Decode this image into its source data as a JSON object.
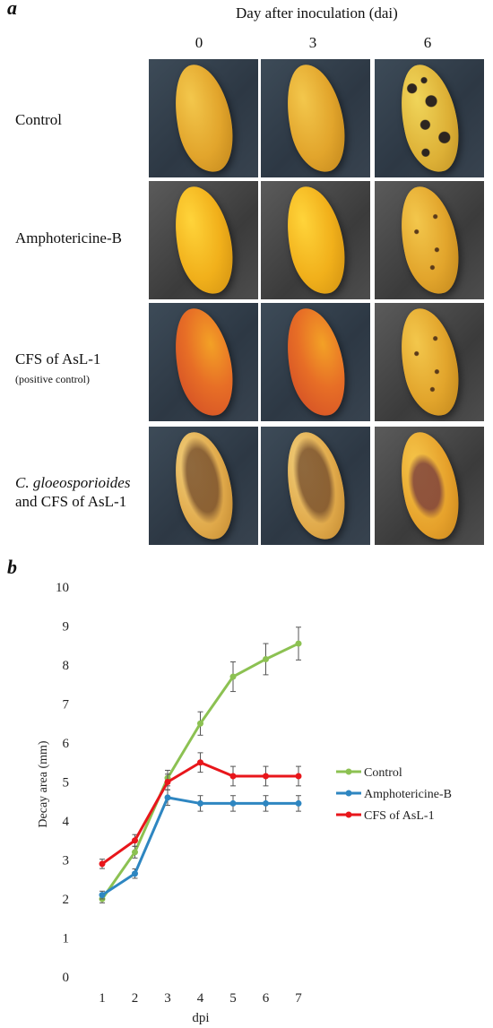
{
  "panel_a": {
    "letter": "a",
    "column_header": "Day after inoculation (dai)",
    "days": [
      "0",
      "3",
      "6"
    ],
    "rows": [
      {
        "label": "Control",
        "sub": ""
      },
      {
        "label": "Amphotericine-B",
        "sub": ""
      },
      {
        "label": "CFS of AsL-1",
        "sub": "(positive control)"
      },
      {
        "label_italic": "C. gloeosporioides",
        "label": "and CFS of AsL-1",
        "sub": ""
      }
    ]
  },
  "panel_b": {
    "letter": "b"
  },
  "chart_data": {
    "type": "line",
    "title": "",
    "xlabel": "dpi",
    "ylabel": "Decay area (mm)",
    "x": [
      1,
      2,
      3,
      4,
      5,
      6,
      7
    ],
    "ylim": [
      0,
      10
    ],
    "yticks": [
      0,
      1,
      2,
      3,
      4,
      5,
      6,
      7,
      8,
      9,
      10
    ],
    "grid": false,
    "legend_placement": "right",
    "error_bars": true,
    "series": [
      {
        "name": "Control",
        "color": "#8cc152",
        "values": [
          2.0,
          3.2,
          5.1,
          6.5,
          7.7,
          8.15,
          8.55
        ],
        "errors": [
          0.1,
          0.15,
          0.2,
          0.3,
          0.38,
          0.4,
          0.42
        ]
      },
      {
        "name": "Amphotericine-B",
        "color": "#2e86c1",
        "values": [
          2.1,
          2.65,
          4.6,
          4.45,
          4.45,
          4.45,
          4.45
        ],
        "errors": [
          0.1,
          0.12,
          0.2,
          0.2,
          0.2,
          0.2,
          0.2
        ]
      },
      {
        "name": "CFS of AsL-1",
        "color": "#e8161b",
        "values": [
          2.9,
          3.5,
          5.0,
          5.5,
          5.15,
          5.15,
          5.15
        ],
        "errors": [
          0.12,
          0.15,
          0.2,
          0.25,
          0.25,
          0.25,
          0.25
        ]
      }
    ]
  }
}
